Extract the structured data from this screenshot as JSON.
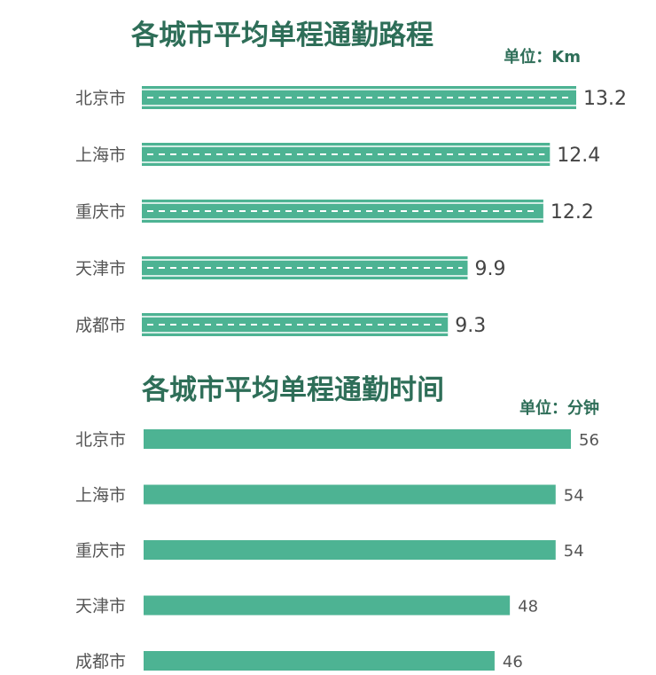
{
  "colors": {
    "bar": "#4db393",
    "title": "#2e6e58",
    "unit": "#2e6e58",
    "stripe": "#ffffff"
  },
  "chart_data": [
    {
      "type": "bar",
      "orientation": "horizontal",
      "style": "road",
      "title": "各城市平均单程通勤路程",
      "unit_label": "单位：Km",
      "categories": [
        "北京市",
        "上海市",
        "重庆市",
        "天津市",
        "成都市"
      ],
      "values": [
        13.2,
        12.4,
        12.2,
        9.9,
        9.3
      ],
      "value_labels": [
        "13.2",
        "12.4",
        "12.2",
        "9.9",
        "9.3"
      ],
      "xlim": [
        0,
        13.2
      ]
    },
    {
      "type": "bar",
      "orientation": "horizontal",
      "style": "flat",
      "title": "各城市平均单程通勤时间",
      "unit_label": "单位：分钟",
      "categories": [
        "北京市",
        "上海市",
        "重庆市",
        "天津市",
        "成都市"
      ],
      "values": [
        56,
        54,
        54,
        48,
        46
      ],
      "value_labels": [
        "56",
        "54",
        "54",
        "48",
        "46"
      ],
      "xlim": [
        0,
        56
      ]
    }
  ]
}
